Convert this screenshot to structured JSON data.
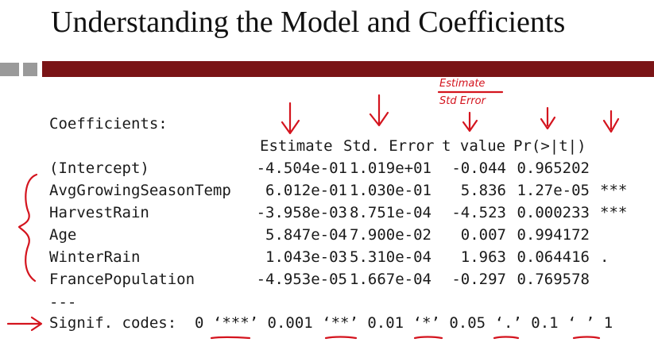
{
  "slide": {
    "title": "Understanding the Model and Coefficients"
  },
  "output": {
    "heading": "Coefficients:",
    "columns": [
      "Estimate",
      "Std. Error",
      "t value",
      "Pr(>|t|)"
    ],
    "rows": [
      {
        "term": "(Intercept)",
        "estimate": "-4.504e-01",
        "std_error": "1.019e+01",
        "t_value": "-0.044",
        "p_value": "0.965202",
        "signif": ""
      },
      {
        "term": "AvgGrowingSeasonTemp",
        "estimate": "6.012e-01",
        "std_error": "1.030e-01",
        "t_value": "5.836",
        "p_value": "1.27e-05",
        "signif": "***"
      },
      {
        "term": "HarvestRain",
        "estimate": "-3.958e-03",
        "std_error": "8.751e-04",
        "t_value": "-4.523",
        "p_value": "0.000233",
        "signif": "***"
      },
      {
        "term": "Age",
        "estimate": "5.847e-04",
        "std_error": "7.900e-02",
        "t_value": "0.007",
        "p_value": "0.994172",
        "signif": ""
      },
      {
        "term": "WinterRain",
        "estimate": "1.043e-03",
        "std_error": "5.310e-04",
        "t_value": "1.963",
        "p_value": "0.064416",
        "signif": "."
      },
      {
        "term": "FrancePopulation",
        "estimate": "-4.953e-05",
        "std_error": "1.667e-04",
        "t_value": "-0.297",
        "p_value": "0.769578",
        "signif": ""
      }
    ],
    "separator": "---",
    "signif_codes": "Signif. codes:  0 ‘***’ 0.001 ‘**’ 0.01 ‘*’ 0.05 ‘.’ 0.1 ‘ ’ 1"
  },
  "annotations": {
    "estimate_note": "Estimate",
    "std_error_note": "Std Error",
    "ink_color": "#d4141e"
  },
  "theme": {
    "bar_color": "#7a1416",
    "block_color": "#9a9a9a"
  }
}
